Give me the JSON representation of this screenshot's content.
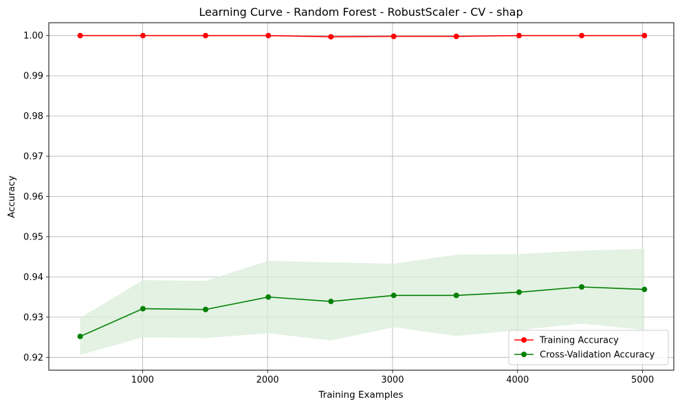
{
  "chart_data": {
    "type": "line",
    "title": "Learning Curve - Random Forest - RobustScaler - CV - shap",
    "xlabel": "Training Examples",
    "ylabel": "Accuracy",
    "xlim": [
      250,
      5250
    ],
    "ylim": [
      0.9168,
      1.0032
    ],
    "xticks": [
      1000,
      2000,
      3000,
      4000,
      5000
    ],
    "yticks": [
      0.92,
      0.93,
      0.94,
      0.95,
      0.96,
      0.97,
      0.98,
      0.99,
      1.0
    ],
    "xtick_labels": [
      "1000",
      "2000",
      "3000",
      "4000",
      "5000"
    ],
    "ytick_labels": [
      "0.92",
      "0.93",
      "0.94",
      "0.95",
      "0.96",
      "0.97",
      "0.98",
      "0.99",
      "1.00"
    ],
    "grid": true,
    "legend_position": "lower-right",
    "x": [
      501,
      1003,
      1504,
      2006,
      2507,
      3009,
      3510,
      4012,
      4513,
      5015
    ],
    "series": [
      {
        "name": "Training Accuracy",
        "color": "#ff0000",
        "marker": "circle",
        "values": [
          1.0,
          1.0,
          1.0,
          1.0,
          0.9997,
          0.9998,
          0.9998,
          1.0,
          1.0,
          1.0
        ],
        "band_lower": [
          1.0,
          1.0,
          1.0,
          1.0,
          0.9995,
          0.9996,
          0.9996,
          1.0,
          1.0,
          1.0
        ],
        "band_upper": [
          1.0,
          1.0,
          1.0,
          1.0,
          0.9999,
          1.0,
          1.0,
          1.0,
          1.0,
          1.0
        ]
      },
      {
        "name": "Cross-Validation Accuracy",
        "color": "#008000",
        "marker": "circle",
        "band_color": "#d9eed9",
        "values": [
          0.9252,
          0.9321,
          0.9319,
          0.935,
          0.9339,
          0.9354,
          0.9354,
          0.9362,
          0.9375,
          0.9369
        ],
        "band_lower": [
          0.9206,
          0.925,
          0.9248,
          0.926,
          0.9242,
          0.9275,
          0.9253,
          0.9268,
          0.9284,
          0.9268
        ],
        "band_upper": [
          0.9298,
          0.9392,
          0.939,
          0.944,
          0.9436,
          0.9433,
          0.9455,
          0.9457,
          0.9465,
          0.947
        ]
      }
    ]
  }
}
